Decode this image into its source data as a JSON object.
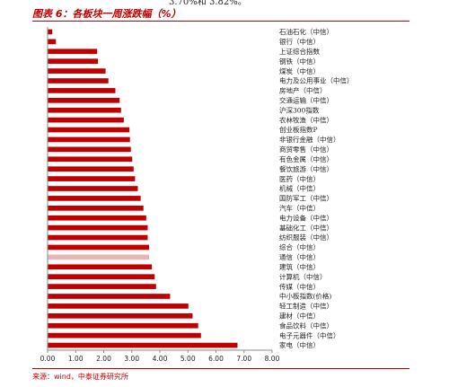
{
  "top_fragment": "3.70%和 3.82%。",
  "figure_title": "图表 6：各板块一周涨跌幅（%）",
  "source": "来源：wind，中泰证券研究所",
  "colors": {
    "bar": "#c00000",
    "highlight_bar": "#e8b4b4",
    "accent": "#c00000"
  },
  "chart_data": {
    "type": "bar",
    "orientation": "horizontal",
    "categories": [
      "石油石化（中信）",
      "银行（中信）",
      "上证综合指数",
      "钢铁（中信）",
      "煤炭（中信）",
      "电力及公用事业（中信）",
      "房地产（中信）",
      "交通运输（中信）",
      "沪深300指数",
      "农林牧渔（中信）",
      "创业板指数P",
      "非银行金融（中信）",
      "商贸零售（中信）",
      "有色金属（中信）",
      "餐饮旅游（中信）",
      "医药（中信）",
      "机械（中信）",
      "国防军工（中信）",
      "汽车（中信）",
      "电力设备（中信）",
      "基础化工（中信）",
      "纺织服装（中信）",
      "综合（中信）",
      "通信（中信）",
      "建筑（中信）",
      "计算机（中信）",
      "传媒（中信）",
      "中小板指数(价格)",
      "轻工制造（中信）",
      "建材（中信）",
      "食品饮料（中信）",
      "电子元器件（中信）",
      "家电（中信）"
    ],
    "values": [
      0.15,
      0.28,
      1.75,
      1.78,
      2.05,
      2.15,
      2.4,
      2.55,
      2.6,
      2.7,
      2.9,
      2.92,
      2.95,
      3.0,
      3.05,
      3.1,
      3.2,
      3.3,
      3.4,
      3.5,
      3.55,
      3.55,
      3.6,
      3.6,
      3.7,
      3.8,
      3.85,
      4.35,
      5.0,
      5.15,
      5.35,
      5.45,
      6.75
    ],
    "highlight_index": 23,
    "xlim": [
      0,
      8
    ],
    "xticks": [
      "0.00",
      "1.00",
      "2.00",
      "3.00",
      "4.00",
      "5.00",
      "6.00",
      "7.00",
      "8.00"
    ],
    "xlabel": "",
    "ylabel": ""
  }
}
